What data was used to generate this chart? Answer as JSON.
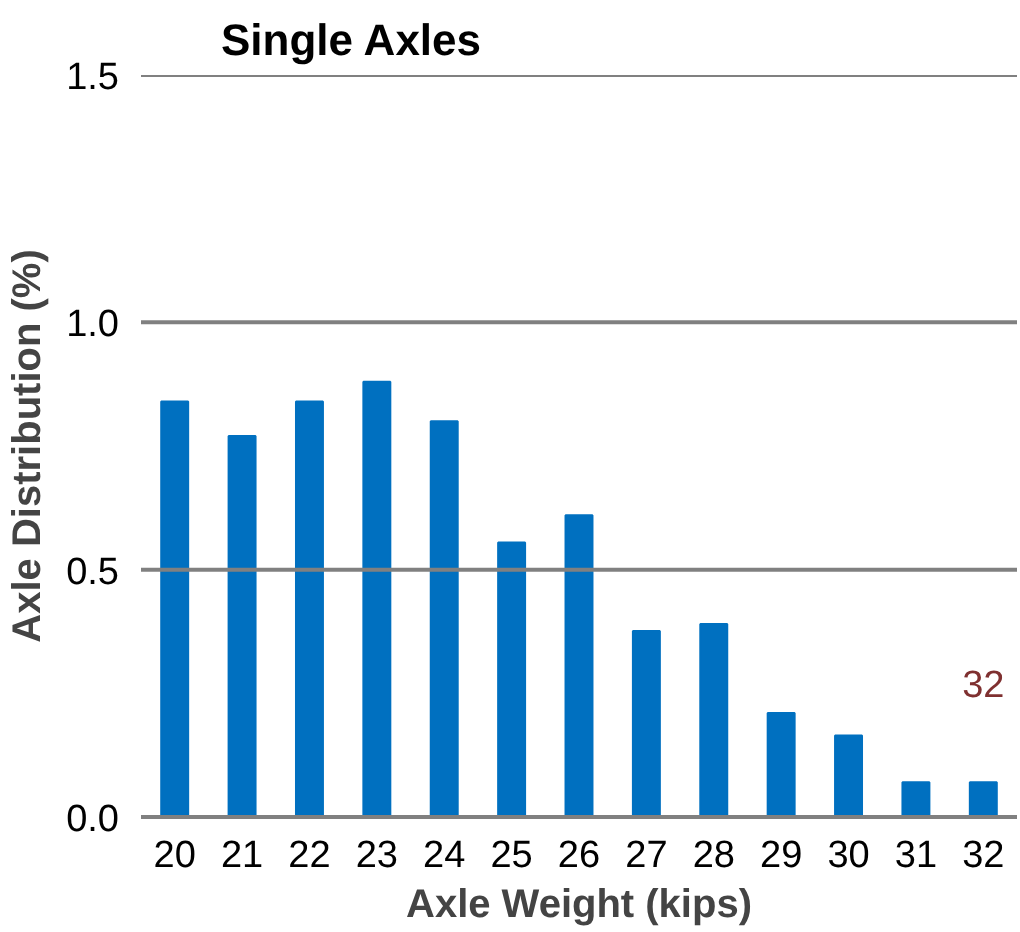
{
  "chart_data": {
    "type": "bar",
    "title": "Single Axles",
    "xlabel": "Axle Weight (kips)",
    "ylabel": "Axle Distribution (%)",
    "categories": [
      "20",
      "21",
      "22",
      "23",
      "24",
      "25",
      "26",
      "27",
      "28",
      "29",
      "30",
      "31",
      "32"
    ],
    "values": [
      0.84,
      0.77,
      0.84,
      0.88,
      0.8,
      0.555,
      0.61,
      0.376,
      0.39,
      0.21,
      0.165,
      0.07,
      0.07
    ],
    "color": "#0070c0",
    "ylim": [
      0,
      1.5
    ],
    "yticks": [
      {
        "value": 0,
        "label": "0.0"
      },
      {
        "value": 0.5,
        "label": "0.5"
      },
      {
        "value": 1,
        "label": "1.0"
      },
      {
        "value": 1.5,
        "label": "1.5"
      }
    ],
    "grid": "y",
    "annotations": [
      "32"
    ]
  }
}
